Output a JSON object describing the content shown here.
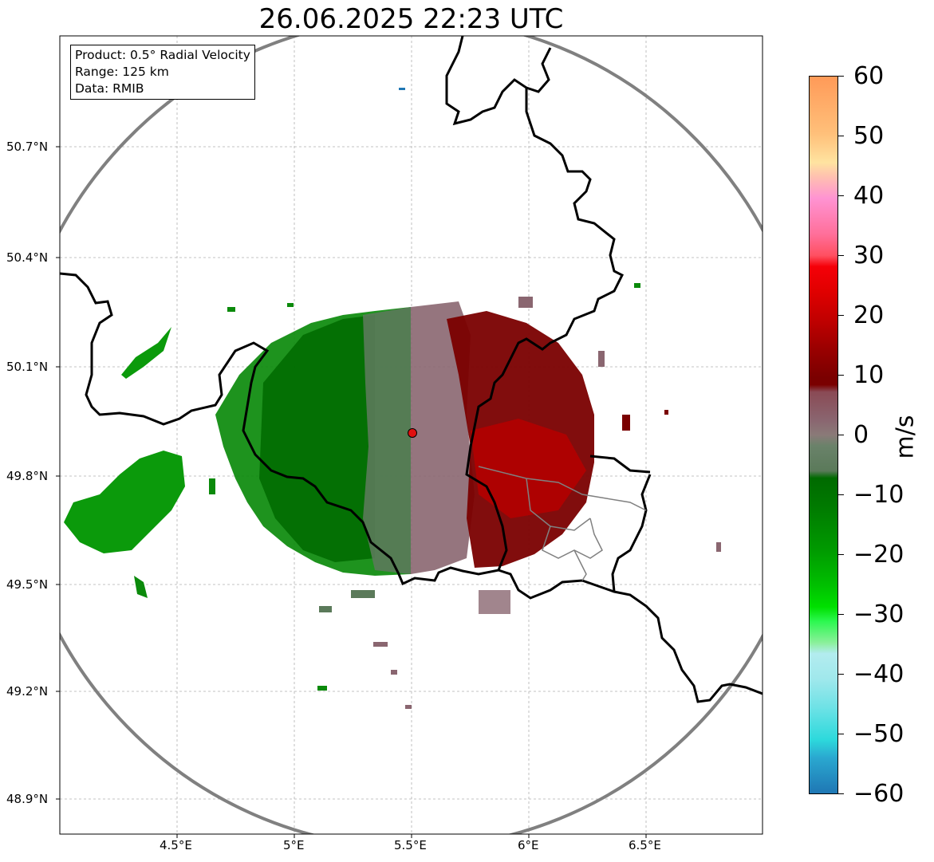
{
  "title": "26.06.2025 22:23 UTC",
  "info": {
    "product": "Product: 0.5° Radial Velocity",
    "range": "Range: 125 km",
    "data": "Data: RMIB"
  },
  "axes": {
    "lat_labels": [
      "50.7°N",
      "50.4°N",
      "50.1°N",
      "49.8°N",
      "49.5°N",
      "49.2°N",
      "48.9°N"
    ],
    "lon_labels": [
      "4.5°E",
      "5°E",
      "5.5°E",
      "6°E",
      "6.5°E"
    ]
  },
  "colorbar": {
    "unit": "m/s",
    "ticks": [
      "60",
      "50",
      "40",
      "30",
      "20",
      "10",
      "0",
      "−10",
      "−20",
      "−30",
      "−40",
      "−50",
      "−60"
    ],
    "colors": {
      "blue": "#1f77b4",
      "cyan": "#2dd9dc",
      "light_cyan": "#b3ecef",
      "light_green": "#8bf09b",
      "green": "#00d000",
      "dark_green": "#006400",
      "grey_green": "#5b7a5a",
      "grey_pink": "#8a6670",
      "maroon": "#7a0000",
      "red": "#e00000",
      "pink": "#ff6f9a",
      "light_pink": "#ff93d2",
      "peach": "#ffd9a0",
      "orange": "#ff9a58"
    }
  },
  "radar_site": {
    "color": "#e01010"
  }
}
